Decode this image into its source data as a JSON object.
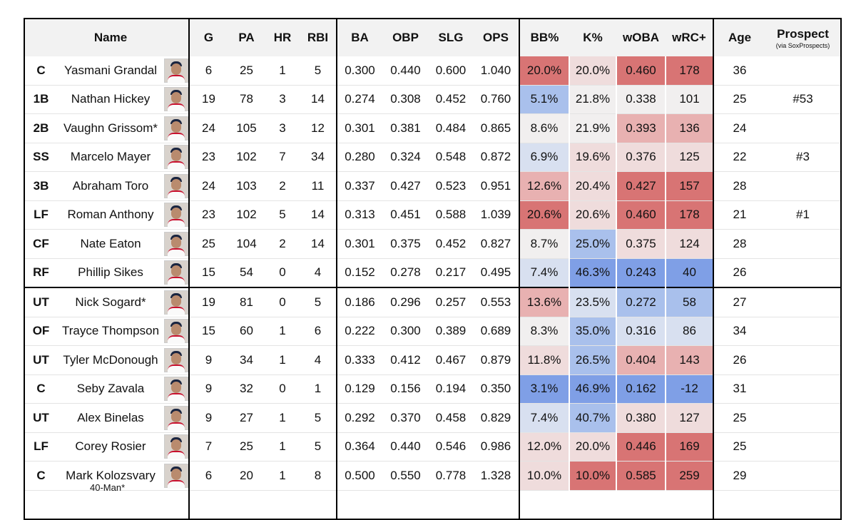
{
  "chart_data": {
    "type": "table",
    "headers": {
      "name": "Name",
      "stats": [
        "G",
        "PA",
        "HR",
        "RBI",
        "BA",
        "OBP",
        "SLG",
        "OPS",
        "BB%",
        "K%",
        "wOBA",
        "wRC+"
      ],
      "age": "Age",
      "prospect": "Prospect",
      "prospect_sub": "(via SoxProspects)"
    },
    "heat_colors": {
      "strong_red": "#d87474",
      "mid_red": "#e8b1b1",
      "light_red": "#efdcdc",
      "neutral": "#f1efef",
      "light_blue": "#d8e0f0",
      "mid_blue": "#a9c0ec",
      "strong_blue": "#7f9fe6"
    },
    "rows": [
      {
        "pos": "C",
        "name": "Yasmani Grandal",
        "g": "6",
        "pa": "25",
        "hr": "1",
        "rbi": "5",
        "ba": "0.300",
        "obp": "0.440",
        "slg": "0.600",
        "ops": "1.040",
        "bb": "20.0%",
        "k": "20.0%",
        "woba": "0.460",
        "wrc": "178",
        "age": "36",
        "prospect": "",
        "bb_heat": "strong_red",
        "k_heat": "light_red",
        "woba_heat": "strong_red",
        "wrc_heat": "strong_red"
      },
      {
        "pos": "1B",
        "name": "Nathan Hickey",
        "g": "19",
        "pa": "78",
        "hr": "3",
        "rbi": "14",
        "ba": "0.274",
        "obp": "0.308",
        "slg": "0.452",
        "ops": "0.760",
        "bb": "5.1%",
        "k": "21.8%",
        "woba": "0.338",
        "wrc": "101",
        "age": "25",
        "prospect": "#53",
        "bb_heat": "mid_blue",
        "k_heat": "neutral",
        "woba_heat": "neutral",
        "wrc_heat": "neutral"
      },
      {
        "pos": "2B",
        "name": "Vaughn Grissom*",
        "g": "24",
        "pa": "105",
        "hr": "3",
        "rbi": "12",
        "ba": "0.301",
        "obp": "0.381",
        "slg": "0.484",
        "ops": "0.865",
        "bb": "8.6%",
        "k": "21.9%",
        "woba": "0.393",
        "wrc": "136",
        "age": "24",
        "prospect": "",
        "bb_heat": "neutral",
        "k_heat": "neutral",
        "woba_heat": "mid_red",
        "wrc_heat": "mid_red"
      },
      {
        "pos": "SS",
        "name": "Marcelo Mayer",
        "g": "23",
        "pa": "102",
        "hr": "7",
        "rbi": "34",
        "ba": "0.280",
        "obp": "0.324",
        "slg": "0.548",
        "ops": "0.872",
        "bb": "6.9%",
        "k": "19.6%",
        "woba": "0.376",
        "wrc": "125",
        "age": "22",
        "prospect": "#3",
        "bb_heat": "light_blue",
        "k_heat": "light_red",
        "woba_heat": "light_red",
        "wrc_heat": "light_red"
      },
      {
        "pos": "3B",
        "name": "Abraham Toro",
        "g": "24",
        "pa": "103",
        "hr": "2",
        "rbi": "11",
        "ba": "0.337",
        "obp": "0.427",
        "slg": "0.523",
        "ops": "0.951",
        "bb": "12.6%",
        "k": "20.4%",
        "woba": "0.427",
        "wrc": "157",
        "age": "28",
        "prospect": "",
        "bb_heat": "mid_red",
        "k_heat": "light_red",
        "woba_heat": "strong_red",
        "wrc_heat": "strong_red"
      },
      {
        "pos": "LF",
        "name": "Roman Anthony",
        "g": "23",
        "pa": "102",
        "hr": "5",
        "rbi": "14",
        "ba": "0.313",
        "obp": "0.451",
        "slg": "0.588",
        "ops": "1.039",
        "bb": "20.6%",
        "k": "20.6%",
        "woba": "0.460",
        "wrc": "178",
        "age": "21",
        "prospect": "#1",
        "bb_heat": "strong_red",
        "k_heat": "light_red",
        "woba_heat": "strong_red",
        "wrc_heat": "strong_red"
      },
      {
        "pos": "CF",
        "name": "Nate Eaton",
        "g": "25",
        "pa": "104",
        "hr": "2",
        "rbi": "14",
        "ba": "0.301",
        "obp": "0.375",
        "slg": "0.452",
        "ops": "0.827",
        "bb": "8.7%",
        "k": "25.0%",
        "woba": "0.375",
        "wrc": "124",
        "age": "28",
        "prospect": "",
        "bb_heat": "neutral",
        "k_heat": "mid_blue",
        "woba_heat": "light_red",
        "wrc_heat": "light_red"
      },
      {
        "pos": "RF",
        "name": "Phillip Sikes",
        "g": "15",
        "pa": "54",
        "hr": "0",
        "rbi": "4",
        "ba": "0.152",
        "obp": "0.278",
        "slg": "0.217",
        "ops": "0.495",
        "bb": "7.4%",
        "k": "46.3%",
        "woba": "0.243",
        "wrc": "40",
        "age": "26",
        "prospect": "",
        "bb_heat": "light_blue",
        "k_heat": "strong_blue",
        "woba_heat": "strong_blue",
        "wrc_heat": "strong_blue"
      },
      {
        "pos": "UT",
        "name": "Nick Sogard*",
        "g": "19",
        "pa": "81",
        "hr": "0",
        "rbi": "5",
        "ba": "0.186",
        "obp": "0.296",
        "slg": "0.257",
        "ops": "0.553",
        "bb": "13.6%",
        "k": "23.5%",
        "woba": "0.272",
        "wrc": "58",
        "age": "27",
        "prospect": "",
        "bb_heat": "mid_red",
        "k_heat": "light_blue",
        "woba_heat": "mid_blue",
        "wrc_heat": "mid_blue"
      },
      {
        "pos": "OF",
        "name": "Trayce Thompson",
        "g": "15",
        "pa": "60",
        "hr": "1",
        "rbi": "6",
        "ba": "0.222",
        "obp": "0.300",
        "slg": "0.389",
        "ops": "0.689",
        "bb": "8.3%",
        "k": "35.0%",
        "woba": "0.316",
        "wrc": "86",
        "age": "34",
        "prospect": "",
        "bb_heat": "neutral",
        "k_heat": "mid_blue",
        "woba_heat": "light_blue",
        "wrc_heat": "light_blue"
      },
      {
        "pos": "UT",
        "name": "Tyler McDonough",
        "g": "9",
        "pa": "34",
        "hr": "1",
        "rbi": "4",
        "ba": "0.333",
        "obp": "0.412",
        "slg": "0.467",
        "ops": "0.879",
        "bb": "11.8%",
        "k": "26.5%",
        "woba": "0.404",
        "wrc": "143",
        "age": "26",
        "prospect": "",
        "bb_heat": "light_red",
        "k_heat": "mid_blue",
        "woba_heat": "mid_red",
        "wrc_heat": "mid_red"
      },
      {
        "pos": "C",
        "name": "Seby Zavala",
        "g": "9",
        "pa": "32",
        "hr": "0",
        "rbi": "1",
        "ba": "0.129",
        "obp": "0.156",
        "slg": "0.194",
        "ops": "0.350",
        "bb": "3.1%",
        "k": "46.9%",
        "woba": "0.162",
        "wrc": "-12",
        "age": "31",
        "prospect": "",
        "bb_heat": "strong_blue",
        "k_heat": "strong_blue",
        "woba_heat": "strong_blue",
        "wrc_heat": "strong_blue"
      },
      {
        "pos": "UT",
        "name": "Alex Binelas",
        "g": "9",
        "pa": "27",
        "hr": "1",
        "rbi": "5",
        "ba": "0.292",
        "obp": "0.370",
        "slg": "0.458",
        "ops": "0.829",
        "bb": "7.4%",
        "k": "40.7%",
        "woba": "0.380",
        "wrc": "127",
        "age": "25",
        "prospect": "",
        "bb_heat": "light_blue",
        "k_heat": "mid_blue",
        "woba_heat": "light_red",
        "wrc_heat": "light_red"
      },
      {
        "pos": "LF",
        "name": "Corey Rosier",
        "g": "7",
        "pa": "25",
        "hr": "1",
        "rbi": "5",
        "ba": "0.364",
        "obp": "0.440",
        "slg": "0.546",
        "ops": "0.986",
        "bb": "12.0%",
        "k": "20.0%",
        "woba": "0.446",
        "wrc": "169",
        "age": "25",
        "prospect": "",
        "bb_heat": "light_red",
        "k_heat": "light_red",
        "woba_heat": "strong_red",
        "wrc_heat": "strong_red"
      },
      {
        "pos": "C",
        "name": "Mark Kolozsvary",
        "g": "6",
        "pa": "20",
        "hr": "1",
        "rbi": "8",
        "ba": "0.500",
        "obp": "0.550",
        "slg": "0.778",
        "ops": "1.328",
        "bb": "10.0%",
        "k": "10.0%",
        "woba": "0.585",
        "wrc": "259",
        "age": "29",
        "prospect": "",
        "bb_heat": "light_red",
        "k_heat": "strong_red",
        "woba_heat": "strong_red",
        "wrc_heat": "strong_red"
      }
    ],
    "separator_before_row": 8,
    "footnote": "40-Man*"
  }
}
